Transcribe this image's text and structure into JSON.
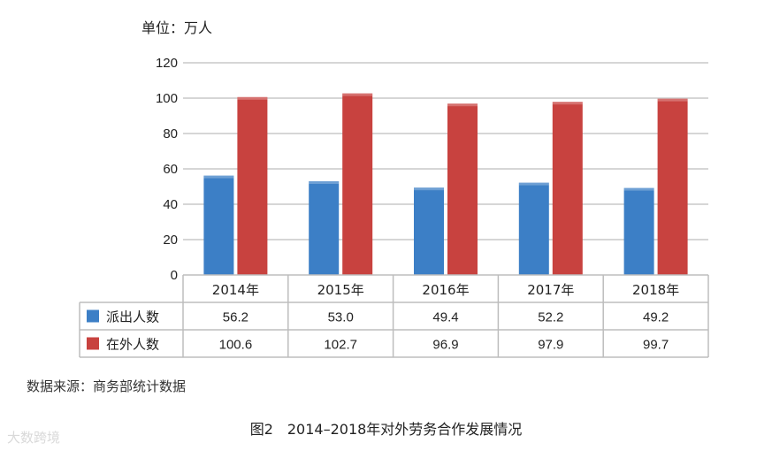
{
  "chart_data": {
    "type": "bar",
    "unit": "单位：万人",
    "categories": [
      "2014年",
      "2015年",
      "2016年",
      "2017年",
      "2018年"
    ],
    "series": [
      {
        "name": "派出人数",
        "color": "#3c7fc6",
        "values": [
          56.2,
          53.0,
          49.4,
          52.2,
          49.2
        ],
        "labels": [
          "56.2",
          "53.0",
          "49.4",
          "52.2",
          "49.2"
        ]
      },
      {
        "name": "在外人数",
        "color": "#c8423f",
        "values": [
          100.6,
          102.7,
          96.9,
          97.9,
          99.7
        ],
        "labels": [
          "100.6",
          "102.7",
          "96.9",
          "97.9",
          "99.7"
        ]
      }
    ],
    "ylim": [
      0,
      120
    ],
    "yticks": [
      "0",
      "20",
      "40",
      "60",
      "80",
      "100",
      "120"
    ],
    "grid": true,
    "legend": "data-table"
  },
  "source": "数据来源：商务部统计数据",
  "caption": "图2　2014–2018年对外劳务合作发展情况",
  "watermark": "大数跨境"
}
